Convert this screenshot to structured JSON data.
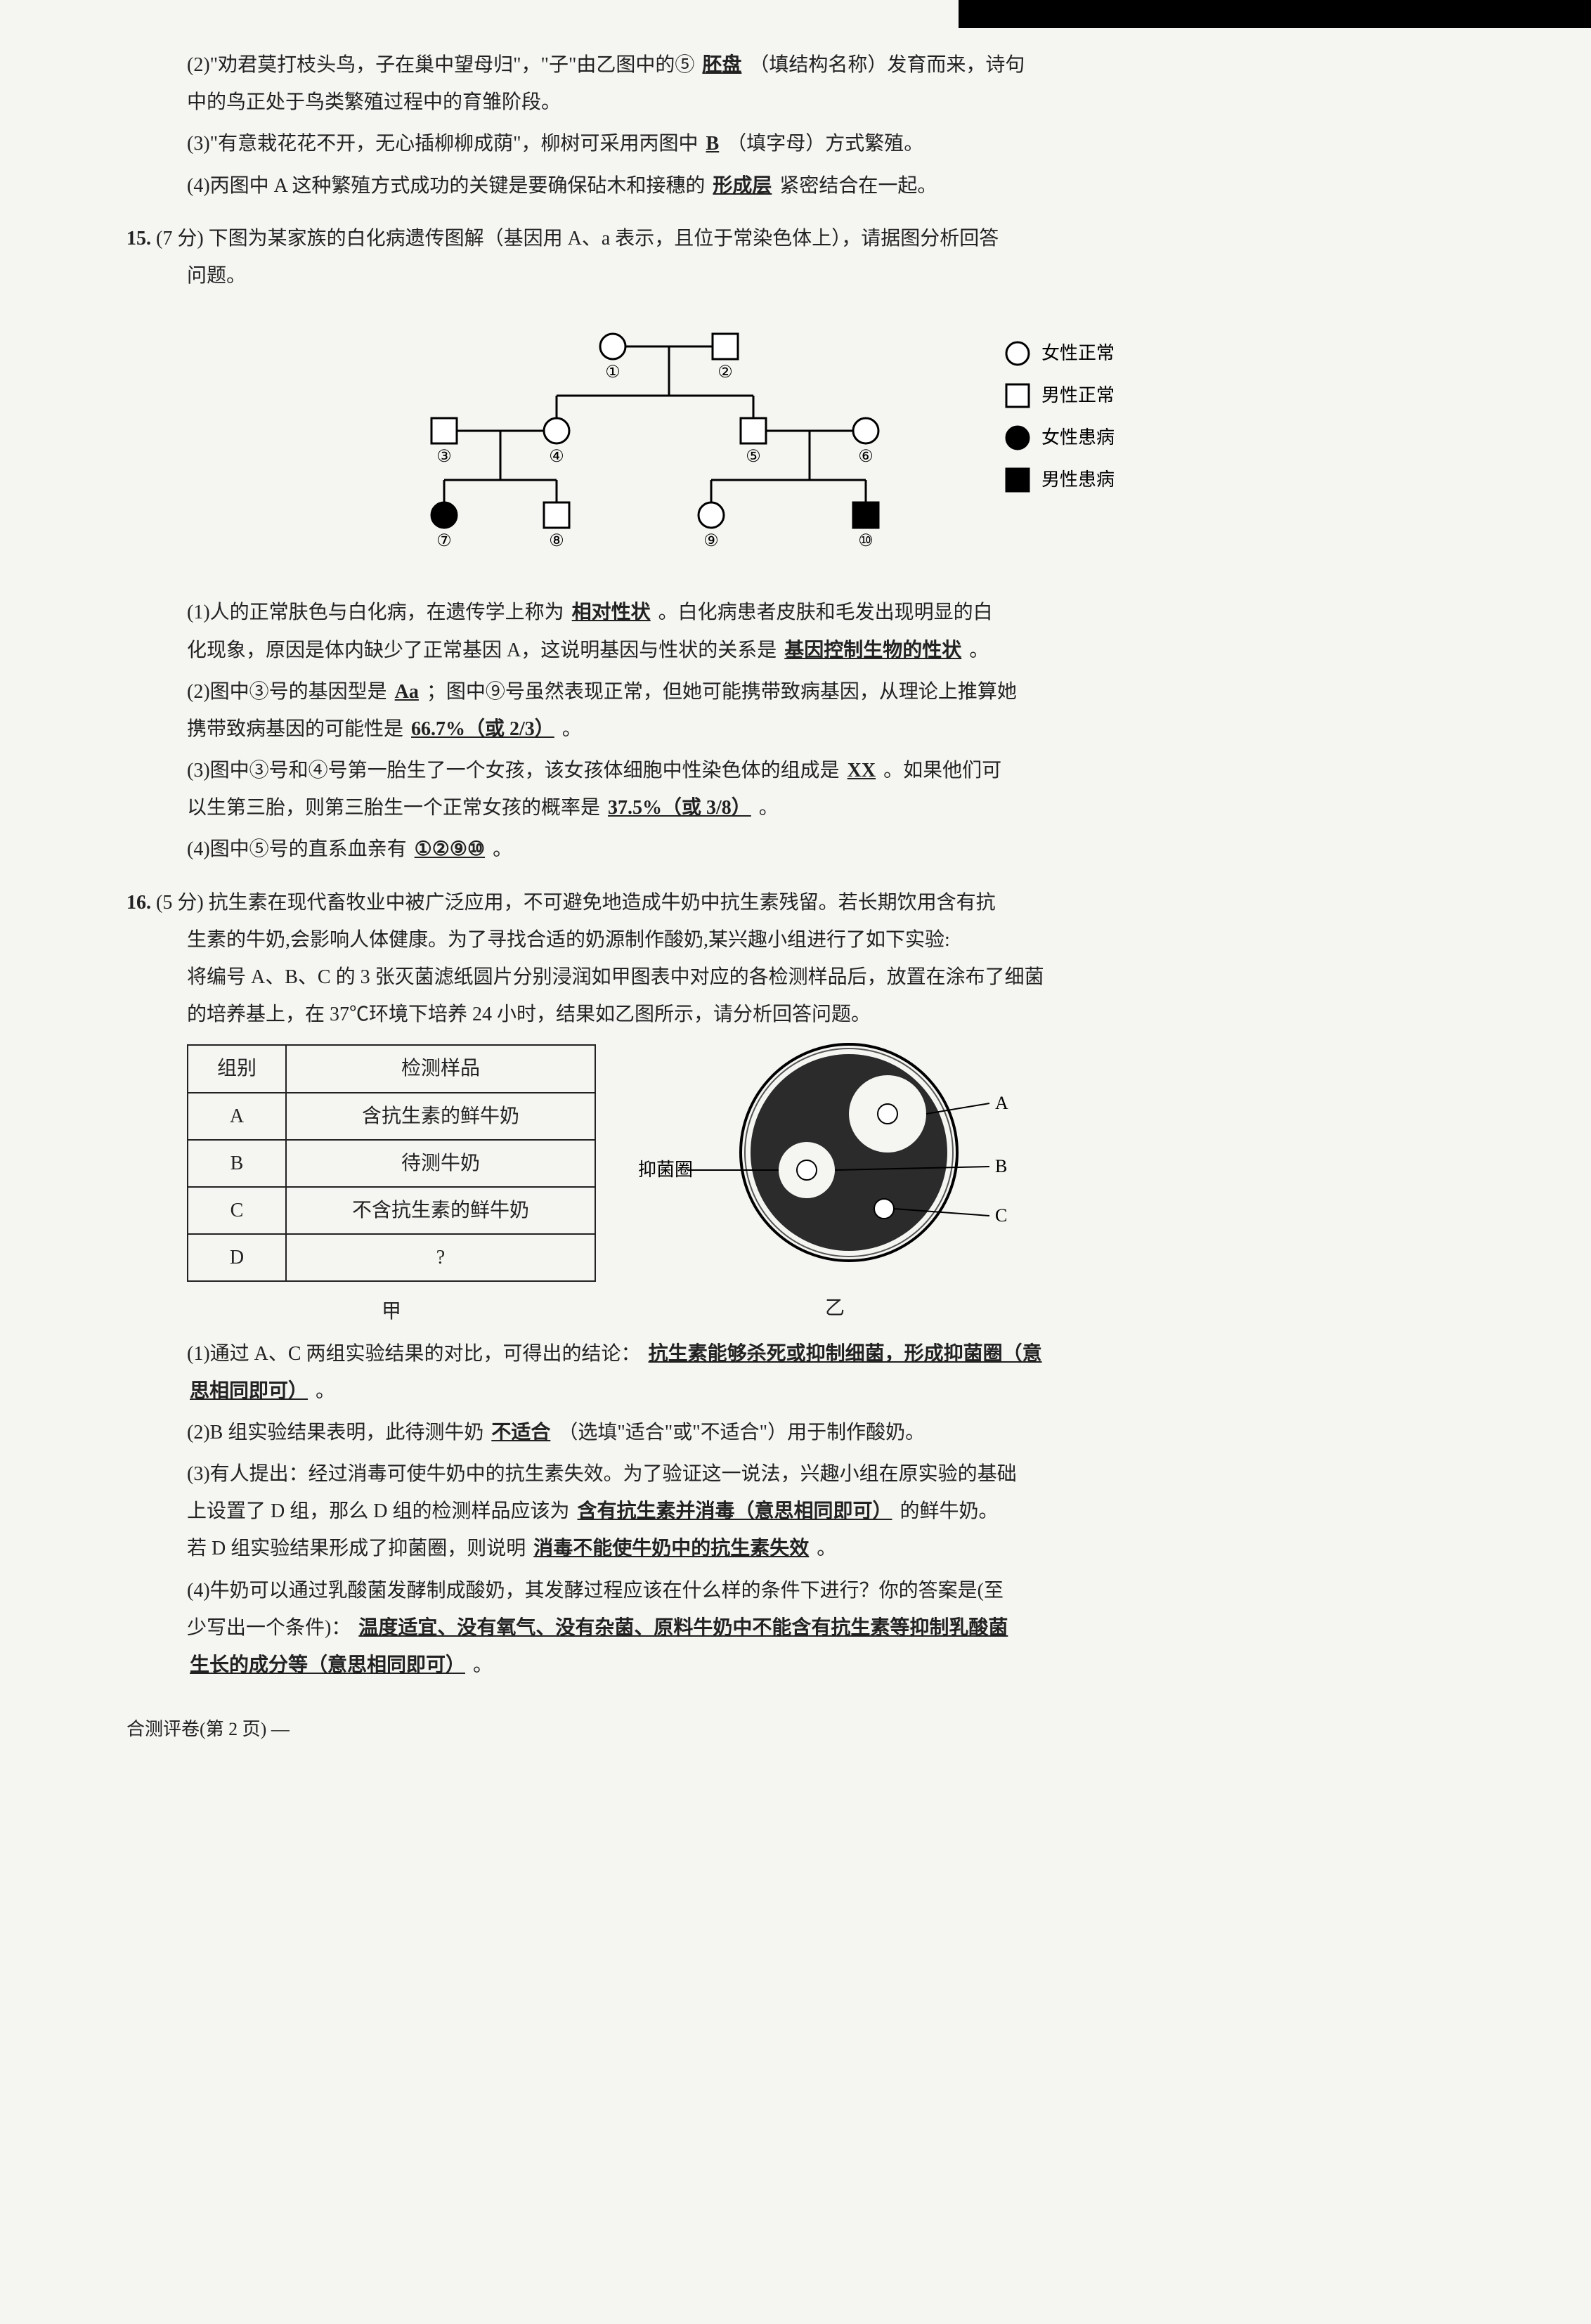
{
  "q14": {
    "sub2": {
      "prefix": "(2)\"劝君莫打枝头鸟，子在巢中望母归\"，\"子\"由乙图中的⑤",
      "ans": "胚盘",
      "mid": "（填结构名称）发育而来，诗句",
      "line2": "中的鸟正处于鸟类繁殖过程中的育雏阶段。"
    },
    "sub3": {
      "prefix": "(3)\"有意栽花花不开，无心插柳柳成荫\"，柳树可采用丙图中",
      "ans": "B",
      "suffix": "（填字母）方式繁殖。"
    },
    "sub4": {
      "prefix": "(4)丙图中 A 这种繁殖方式成功的关键是要确保砧木和接穗的",
      "ans": "形成层",
      "suffix": "紧密结合在一起。"
    }
  },
  "q15": {
    "num": "15.",
    "points": "(7 分)",
    "stem1": "下图为某家族的白化病遗传图解（基因用 A、a 表示，且位于常染色体上），请据图分析回答",
    "stem2": "问题。",
    "pedigree": {
      "gen1": [
        {
          "id": "①",
          "shape": "circle",
          "filled": false
        },
        {
          "id": "②",
          "shape": "square",
          "filled": false
        }
      ],
      "gen2": [
        {
          "id": "③",
          "shape": "square",
          "filled": false
        },
        {
          "id": "④",
          "shape": "circle",
          "filled": false
        },
        {
          "id": "⑤",
          "shape": "square",
          "filled": false
        },
        {
          "id": "⑥",
          "shape": "circle",
          "filled": false
        }
      ],
      "gen3": [
        {
          "id": "⑦",
          "shape": "circle",
          "filled": true
        },
        {
          "id": "⑧",
          "shape": "square",
          "filled": false
        },
        {
          "id": "⑨",
          "shape": "circle",
          "filled": false
        },
        {
          "id": "⑩",
          "shape": "square",
          "filled": true
        }
      ],
      "legend": [
        {
          "shape": "circle",
          "filled": false,
          "label": "女性正常"
        },
        {
          "shape": "square",
          "filled": false,
          "label": "男性正常"
        },
        {
          "shape": "circle",
          "filled": true,
          "label": "女性患病"
        },
        {
          "shape": "square",
          "filled": true,
          "label": "男性患病"
        }
      ]
    },
    "sub1": {
      "p1a": "(1)人的正常肤色与白化病，在遗传学上称为",
      "a1": "相对性状",
      "p1b": "。白化病患者皮肤和毛发出现明显的白",
      "p2a": "化现象，原因是体内缺少了正常基因 A，这说明基因与性状的关系是",
      "a2": "基因控制生物的性状",
      "p2b": "。"
    },
    "sub2": {
      "p1a": "(2)图中③号的基因型是",
      "a1": "Aa",
      "p1b": "；图中⑨号虽然表现正常，但她可能携带致病基因，从理论上推算她",
      "p2a": "携带致病基因的可能性是",
      "a2": "66.7%（或 2/3）",
      "p2b": "。"
    },
    "sub3": {
      "p1a": "(3)图中③号和④号第一胎生了一个女孩，该女孩体细胞中性染色体的组成是",
      "a1": "XX",
      "p1b": "。如果他们可",
      "p2a": "以生第三胎，则第三胎生一个正常女孩的概率是",
      "a2": "37.5%（或 3/8）",
      "p2b": "。"
    },
    "sub4": {
      "p1a": "(4)图中⑤号的直系血亲有",
      "a1": "①②⑨⑩",
      "p1b": "。"
    }
  },
  "q16": {
    "num": "16.",
    "points": "(5 分)",
    "stem1": "抗生素在现代畜牧业中被广泛应用，不可避免地造成牛奶中抗生素残留。若长期饮用含有抗",
    "stem2": "生素的牛奶,会影响人体健康。为了寻找合适的奶源制作酸奶,某兴趣小组进行了如下实验:",
    "proc1": "将编号 A、B、C 的 3 张灭菌滤纸圆片分别浸润如甲图表中对应的各检测样品后，放置在涂布了细菌",
    "proc2": "的培养基上，在 37℃环境下培养 24 小时，结果如乙图所示，请分析回答问题。",
    "table": {
      "headers": [
        "组别",
        "检测样品"
      ],
      "rows": [
        [
          "A",
          "含抗生素的鲜牛奶"
        ],
        [
          "B",
          "待测牛奶"
        ],
        [
          "C",
          "不含抗生素的鲜牛奶"
        ],
        [
          "D",
          "?"
        ]
      ],
      "caption": "甲"
    },
    "dish": {
      "label_ring": "抑菌圈",
      "labels": [
        "A",
        "B",
        "C"
      ],
      "caption": "乙"
    },
    "sub1": {
      "p1a": "(1)通过 A、C 两组实验结果的对比，可得出的结论：",
      "a1": "抗生素能够杀死或抑制细菌，形成抑菌圈（意",
      "p2a": "思相同即可）",
      "p2b": "。"
    },
    "sub2": {
      "p1a": "(2)B 组实验结果表明，此待测牛奶",
      "a1": "不适合",
      "p1b": "（选填\"适合\"或\"不适合\"）用于制作酸奶。"
    },
    "sub3": {
      "p1a": "(3)有人提出：经过消毒可使牛奶中的抗生素失效。为了验证这一说法，兴趣小组在原实验的基础",
      "p2a": "上设置了 D 组，那么 D 组的检测样品应该为",
      "a2": "含有抗生素并消毒（意思相同即可）",
      "p2b": "的鲜牛奶。",
      "p3a": "若 D 组实验结果形成了抑菌圈，则说明",
      "a3": "消毒不能使牛奶中的抗生素失效",
      "p3b": "。"
    },
    "sub4": {
      "p1a": "(4)牛奶可以通过乳酸菌发酵制成酸奶，其发酵过程应该在什么样的条件下进行？你的答案是(至",
      "p2a": "少写出一个条件)：",
      "a2": "温度适宜、没有氧气、没有杂菌、原料牛奶中不能含有抗生素等抑制乳酸菌",
      "p3a": "生长的成分等（意思相同即可）",
      "p3b": "。"
    }
  },
  "footer": "合测评卷(第 2 页) —"
}
